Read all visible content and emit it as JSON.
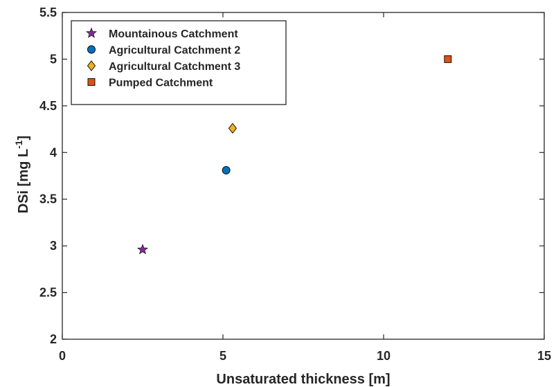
{
  "chart_data": {
    "type": "scatter",
    "title": "",
    "xlabel": "Unsaturated thickness [m]",
    "ylabel": "DSi [mg L",
    "ylabel_superscript": "-1",
    "ylabel_suffix": "]",
    "xlim": [
      0,
      15
    ],
    "ylim": [
      2,
      5.5
    ],
    "x_ticks": [
      "0",
      "5",
      "10",
      "15"
    ],
    "y_ticks": [
      "2",
      "2.5",
      "3",
      "3.5",
      "4",
      "4.5",
      "5",
      "5.5"
    ],
    "grid": false,
    "legend_position": "top-left",
    "series": [
      {
        "name": "Mountainous Catchment",
        "marker": "star",
        "color": "#7E2F8E",
        "x": [
          2.5
        ],
        "y": [
          2.96
        ]
      },
      {
        "name": "Agricultural Catchment 2",
        "marker": "circle",
        "color": "#0072BD",
        "x": [
          5.1
        ],
        "y": [
          3.81
        ]
      },
      {
        "name": "Agricultural Catchment 3",
        "marker": "diamond",
        "color": "#EDB120",
        "x": [
          5.3
        ],
        "y": [
          4.26
        ]
      },
      {
        "name": "Pumped Catchment",
        "marker": "square",
        "color": "#D95319",
        "x": [
          12.0
        ],
        "y": [
          5.0
        ]
      }
    ]
  }
}
